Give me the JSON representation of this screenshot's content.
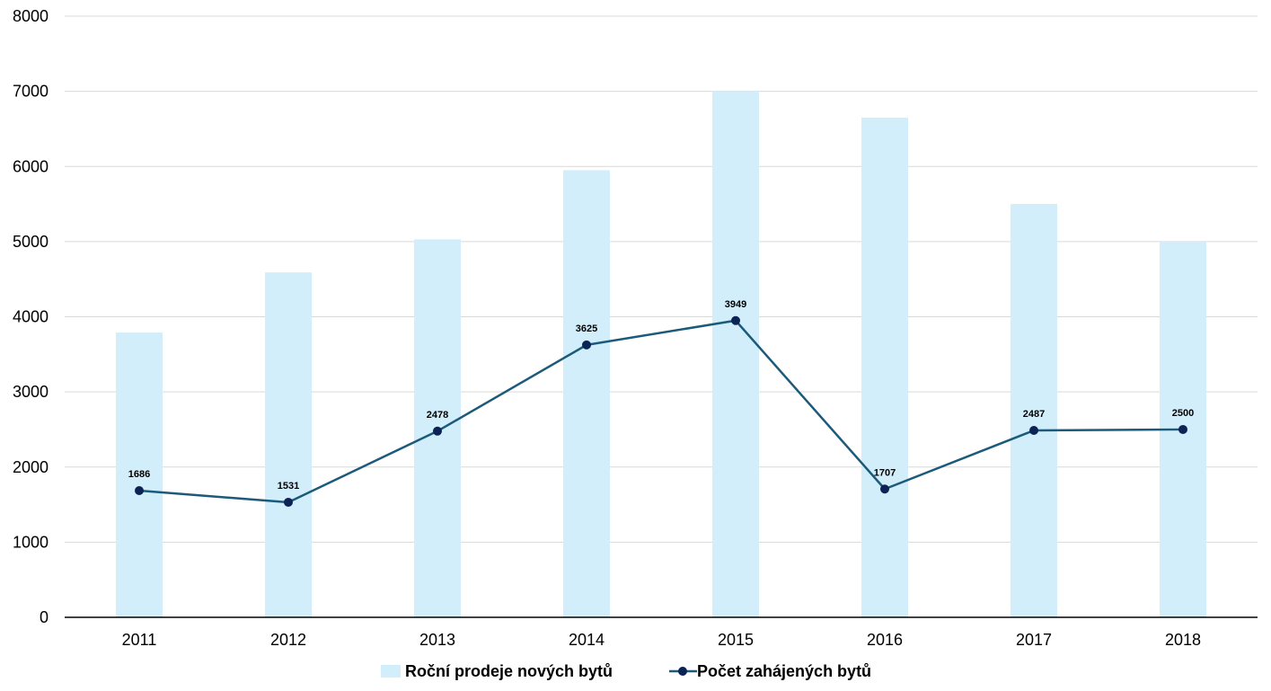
{
  "chart_data": {
    "type": "bar",
    "categories": [
      "2011",
      "2012",
      "2013",
      "2014",
      "2015",
      "2016",
      "2017",
      "2018"
    ],
    "series": [
      {
        "name": "Roční prodeje nových bytů",
        "type": "bar",
        "color": "#d2eefb",
        "values": [
          3790,
          4590,
          5030,
          5950,
          7000,
          6650,
          5500,
          5000
        ]
      },
      {
        "name": "Počet zahájených bytů",
        "type": "line",
        "line_color": "#1b5a7a",
        "marker_color": "#0c2356",
        "values": [
          1686,
          1531,
          2478,
          3625,
          3949,
          1707,
          2487,
          2500
        ],
        "data_labels": [
          "1686",
          "1531",
          "2478",
          "3625",
          "3949",
          "1707",
          "2487",
          "2500"
        ]
      }
    ],
    "yticks": [
      "0",
      "1000",
      "2000",
      "3000",
      "4000",
      "5000",
      "6000",
      "7000",
      "8000"
    ],
    "ylim": [
      0,
      8000
    ],
    "grid": true,
    "legend_position": "bottom"
  }
}
